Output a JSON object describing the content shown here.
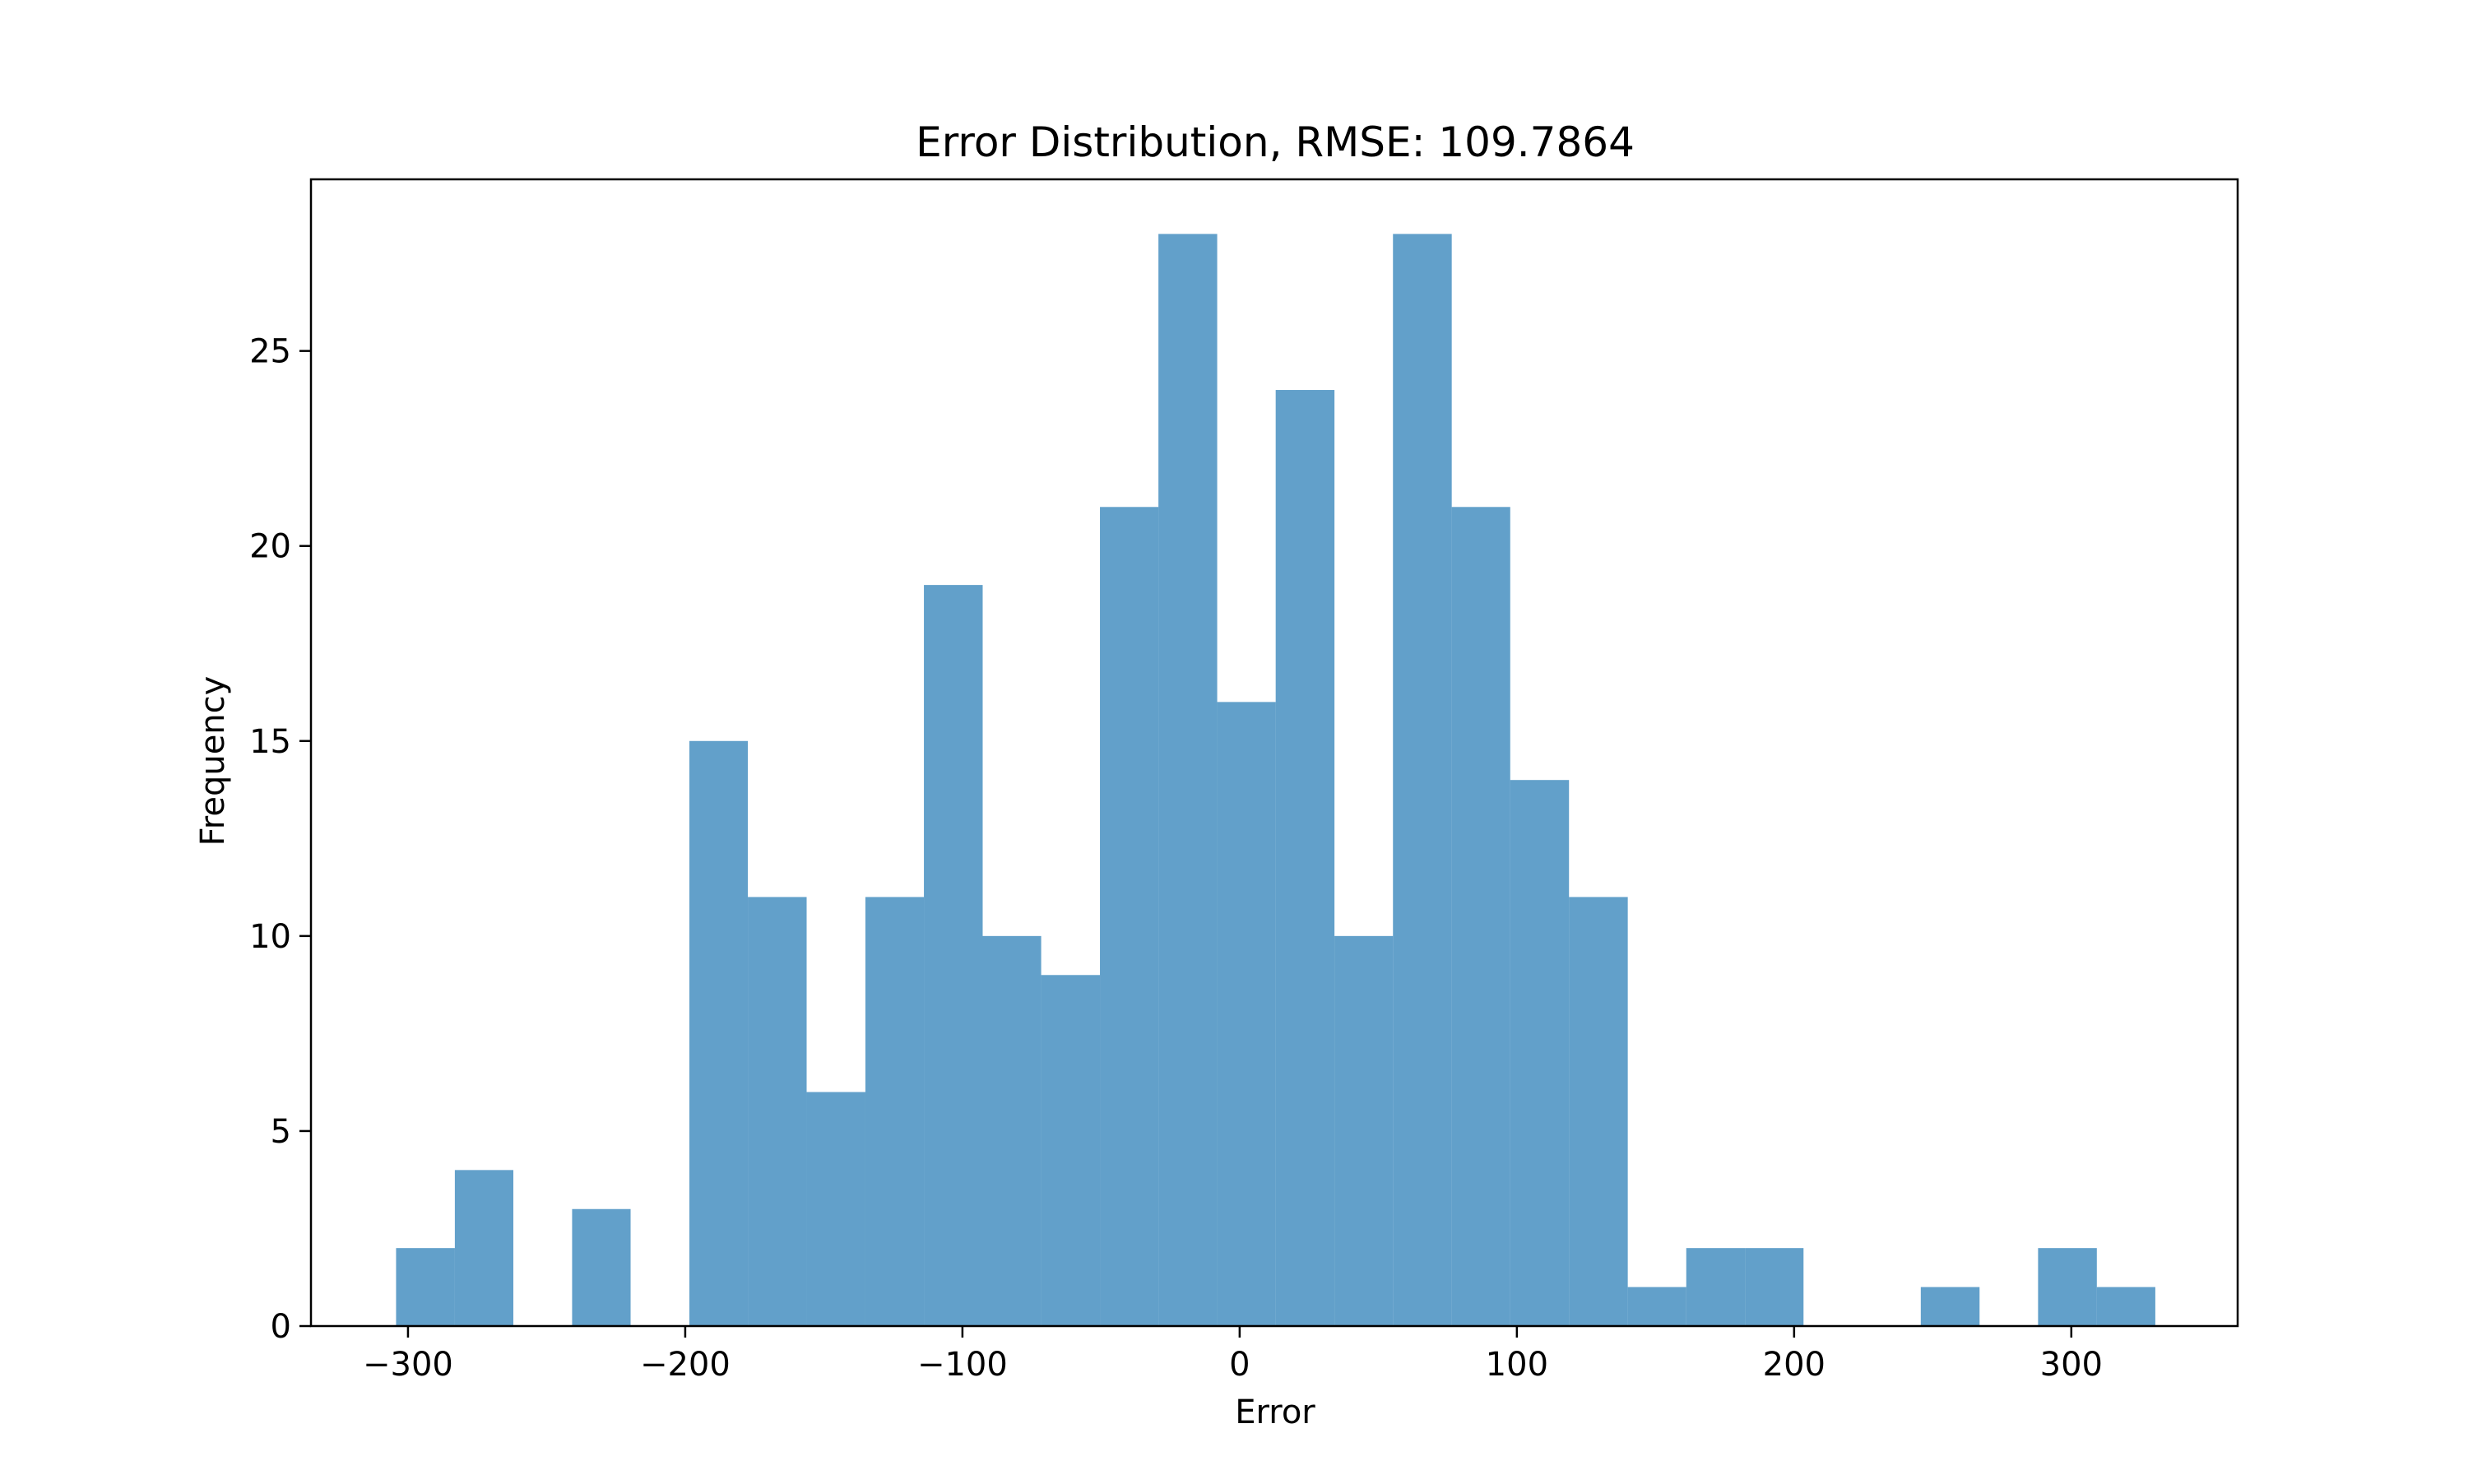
{
  "chart_data": {
    "type": "bar",
    "title": "Error Distribution, RMSE: 109.7864",
    "xlabel": "Error",
    "ylabel": "Frequency",
    "xlim": [
      -335,
      360
    ],
    "ylim": [
      0,
      29.4
    ],
    "grid": false,
    "bar_color": "#1f77b4",
    "bar_opacity": 0.7,
    "bin_edges": [
      -304.3,
      -283.1,
      -262.0,
      -240.8,
      -219.7,
      -198.5,
      -177.4,
      -156.2,
      -135.0,
      -113.9,
      -92.7,
      -71.6,
      -50.4,
      -29.3,
      -8.1,
      13.0,
      34.2,
      55.3,
      76.5,
      97.6,
      118.8,
      140.0,
      161.1,
      182.3,
      203.4,
      224.6,
      245.7,
      266.9,
      288.0,
      309.2,
      330.3
    ],
    "values": [
      2,
      4,
      0,
      3,
      0,
      15,
      11,
      6,
      11,
      19,
      10,
      9,
      21,
      28,
      16,
      24,
      10,
      28,
      21,
      14,
      11,
      1,
      2,
      2,
      0,
      0,
      1,
      0,
      2,
      1
    ],
    "x_ticks": [
      {
        "value": -300,
        "label": "−300"
      },
      {
        "value": -200,
        "label": "−200"
      },
      {
        "value": -100,
        "label": "−100"
      },
      {
        "value": 0,
        "label": "0"
      },
      {
        "value": 100,
        "label": "100"
      },
      {
        "value": 200,
        "label": "200"
      },
      {
        "value": 300,
        "label": "300"
      }
    ],
    "y_ticks": [
      {
        "value": 0,
        "label": "0"
      },
      {
        "value": 5,
        "label": "5"
      },
      {
        "value": 10,
        "label": "10"
      },
      {
        "value": 15,
        "label": "15"
      },
      {
        "value": 20,
        "label": "20"
      },
      {
        "value": 25,
        "label": "25"
      }
    ]
  }
}
